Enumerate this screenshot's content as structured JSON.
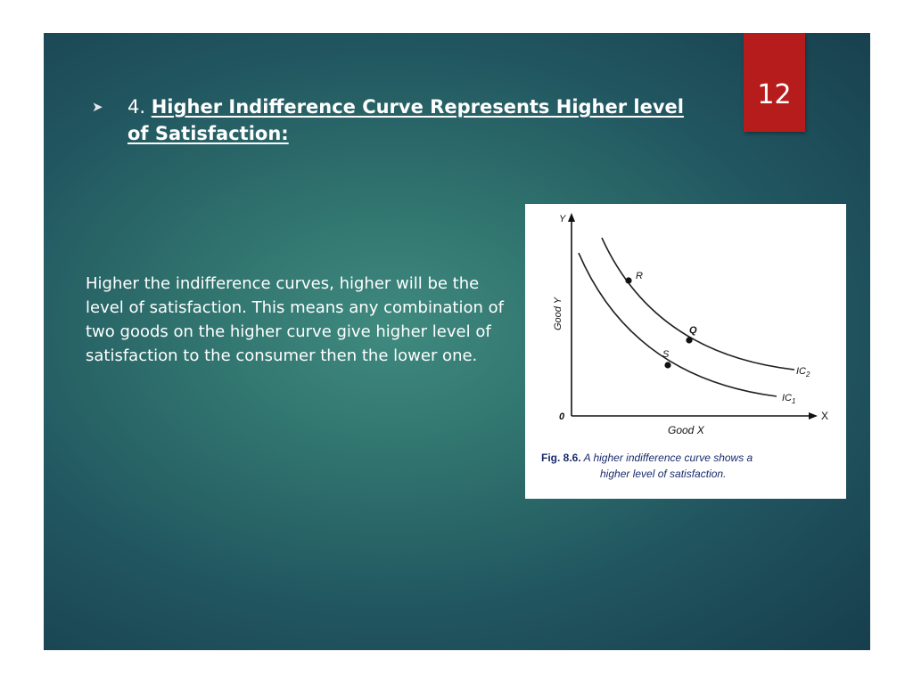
{
  "slide": {
    "number": "12",
    "heading": {
      "number": "4.",
      "title": "Higher Indifference Curve Represents Higher level of Satisfaction:"
    },
    "body": "Higher the indifference curves, higher will be the level of satisfaction. This means any combination of two goods on the higher curve give higher level of satisfaction to the consumer then the lower one."
  },
  "figure": {
    "caption_label": "Fig. 8.6.",
    "caption_line1": "A higher indifference curve shows a",
    "caption_line2": "higher level of satisfaction.",
    "axis_x_letter": "X",
    "axis_y_letter": "Y",
    "origin": "0",
    "xlabel": "Good X",
    "ylabel": "Good Y",
    "curves": [
      {
        "name": "IC",
        "subscript": "1",
        "points": [
          {
            "label": "S"
          }
        ]
      },
      {
        "name": "IC",
        "subscript": "2",
        "points": [
          {
            "label": "R"
          },
          {
            "label": "Q"
          }
        ]
      }
    ]
  },
  "colors": {
    "slide_bg": "#2f716d",
    "number_box": "#b71c1c",
    "caption_text": "#1a2a6c"
  }
}
